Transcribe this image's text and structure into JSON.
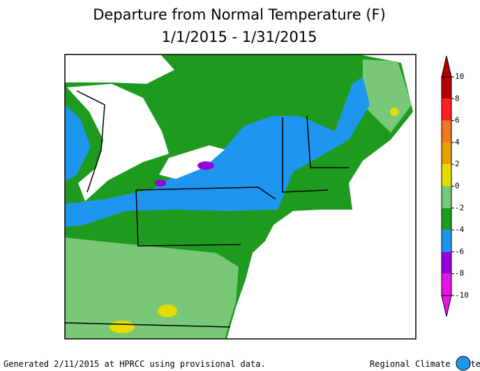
{
  "title": [
    "Departure from Normal Temperature (F)",
    "1/1/2015 - 1/31/2015"
  ],
  "legend": {
    "ticks": [
      10,
      8,
      6,
      4,
      2,
      0,
      -2,
      -4,
      -6,
      -8,
      -10
    ],
    "colors": [
      "#b40000",
      "#ff1e1e",
      "#f07820",
      "#e6a000",
      "#e6dc00",
      "#78c878",
      "#1e9b1e",
      "#1e96f0",
      "#9600dc",
      "#e614e6"
    ]
  },
  "footer": {
    "left": "Generated 2/11/2015 at HPRCC using provisional data.",
    "right": "Regional Climate Centers"
  }
}
